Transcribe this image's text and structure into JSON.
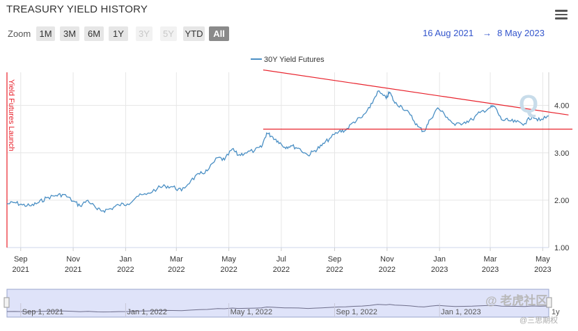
{
  "header": {
    "title": "TREASURY YIELD HISTORY",
    "menu_icon": "hamburger-menu-icon"
  },
  "zoom": {
    "label": "Zoom",
    "buttons": [
      {
        "label": "1M",
        "state": "normal"
      },
      {
        "label": "3M",
        "state": "normal"
      },
      {
        "label": "6M",
        "state": "normal"
      },
      {
        "label": "1Y",
        "state": "normal"
      },
      {
        "label": "3Y",
        "state": "disabled"
      },
      {
        "label": "5Y",
        "state": "disabled"
      },
      {
        "label": "YTD",
        "state": "normal"
      },
      {
        "label": "All",
        "state": "active"
      }
    ]
  },
  "range": {
    "from": "16 Aug 2021",
    "arrow": "→",
    "to": "8 May 2023"
  },
  "annotation": {
    "text": "Yield Futures Launch",
    "color": "#e8202a"
  },
  "watermark": {
    "text": "@ 老虎社区",
    "sub": "@三思期权"
  },
  "navigator": {
    "labels": [
      "Sep 1, 2021",
      "Jan 1, 2022",
      "May 1, 2022",
      "Sep 1, 2022",
      "Jan 1, 2023"
    ],
    "partial": "1y"
  },
  "colors": {
    "series": "#4a8fc4",
    "trend": "#e8202a",
    "nav_fill": "#dfe3f9"
  },
  "chart_data": {
    "type": "line",
    "title": "TREASURY YIELD HISTORY",
    "x_start": "2021-08-16",
    "x_end": "2023-05-08",
    "ylim": [
      1.0,
      4.7
    ],
    "yticks": [
      "1.00",
      "2.00",
      "3.00",
      "4.00"
    ],
    "xticks": [
      {
        "date": "2021-09-01",
        "m": "Sep",
        "y": "2021"
      },
      {
        "date": "2021-11-01",
        "m": "Nov",
        "y": "2021"
      },
      {
        "date": "2022-01-01",
        "m": "Jan",
        "y": "2022"
      },
      {
        "date": "2022-03-01",
        "m": "Mar",
        "y": "2022"
      },
      {
        "date": "2022-05-01",
        "m": "May",
        "y": "2022"
      },
      {
        "date": "2022-07-01",
        "m": "Jul",
        "y": "2022"
      },
      {
        "date": "2022-09-01",
        "m": "Sep",
        "y": "2022"
      },
      {
        "date": "2022-11-01",
        "m": "Nov",
        "y": "2022"
      },
      {
        "date": "2023-01-01",
        "m": "Jan",
        "y": "2023"
      },
      {
        "date": "2023-03-01",
        "m": "Mar",
        "y": "2023"
      },
      {
        "date": "2023-05-01",
        "m": "May",
        "y": "2023"
      }
    ],
    "grid": true,
    "legend": "top-center",
    "series": [
      {
        "name": "30Y Yield Futures",
        "points": [
          [
            "2021-08-16",
            1.92
          ],
          [
            "2021-08-25",
            1.95
          ],
          [
            "2021-09-03",
            1.9
          ],
          [
            "2021-09-13",
            1.88
          ],
          [
            "2021-09-22",
            1.95
          ],
          [
            "2021-10-01",
            2.05
          ],
          [
            "2021-10-12",
            2.1
          ],
          [
            "2021-10-21",
            2.12
          ],
          [
            "2021-11-01",
            1.98
          ],
          [
            "2021-11-09",
            1.88
          ],
          [
            "2021-11-18",
            2.0
          ],
          [
            "2021-11-29",
            1.8
          ],
          [
            "2021-12-06",
            1.78
          ],
          [
            "2021-12-15",
            1.82
          ],
          [
            "2021-12-24",
            1.9
          ],
          [
            "2022-01-03",
            1.92
          ],
          [
            "2022-01-14",
            2.08
          ],
          [
            "2022-01-25",
            2.12
          ],
          [
            "2022-02-07",
            2.25
          ],
          [
            "2022-02-16",
            2.3
          ],
          [
            "2022-02-25",
            2.28
          ],
          [
            "2022-03-07",
            2.2
          ],
          [
            "2022-03-18",
            2.42
          ],
          [
            "2022-03-28",
            2.55
          ],
          [
            "2022-04-06",
            2.62
          ],
          [
            "2022-04-18",
            2.9
          ],
          [
            "2022-04-26",
            2.85
          ],
          [
            "2022-05-05",
            3.08
          ],
          [
            "2022-05-12",
            2.95
          ],
          [
            "2022-05-20",
            3.0
          ],
          [
            "2022-05-31",
            3.05
          ],
          [
            "2022-06-08",
            3.12
          ],
          [
            "2022-06-14",
            3.42
          ],
          [
            "2022-06-20",
            3.35
          ],
          [
            "2022-06-27",
            3.25
          ],
          [
            "2022-07-05",
            3.12
          ],
          [
            "2022-07-12",
            3.15
          ],
          [
            "2022-07-21",
            3.1
          ],
          [
            "2022-08-01",
            2.95
          ],
          [
            "2022-08-09",
            3.05
          ],
          [
            "2022-08-17",
            3.15
          ],
          [
            "2022-08-26",
            3.3
          ],
          [
            "2022-09-06",
            3.45
          ],
          [
            "2022-09-14",
            3.48
          ],
          [
            "2022-09-23",
            3.65
          ],
          [
            "2022-10-03",
            3.75
          ],
          [
            "2022-10-12",
            3.95
          ],
          [
            "2022-10-21",
            4.3
          ],
          [
            "2022-10-31",
            4.15
          ],
          [
            "2022-11-04",
            4.28
          ],
          [
            "2022-11-10",
            4.05
          ],
          [
            "2022-11-18",
            3.98
          ],
          [
            "2022-11-28",
            3.8
          ],
          [
            "2022-12-07",
            3.55
          ],
          [
            "2022-12-14",
            3.45
          ],
          [
            "2022-12-21",
            3.7
          ],
          [
            "2022-12-30",
            3.95
          ],
          [
            "2023-01-10",
            3.75
          ],
          [
            "2023-01-19",
            3.58
          ],
          [
            "2023-01-30",
            3.65
          ],
          [
            "2023-02-08",
            3.7
          ],
          [
            "2023-02-17",
            3.85
          ],
          [
            "2023-02-28",
            3.95
          ],
          [
            "2023-03-06",
            3.98
          ],
          [
            "2023-03-14",
            3.7
          ],
          [
            "2023-03-22",
            3.68
          ],
          [
            "2023-03-31",
            3.65
          ],
          [
            "2023-04-10",
            3.62
          ],
          [
            "2023-04-19",
            3.78
          ],
          [
            "2023-04-28",
            3.68
          ],
          [
            "2023-05-08",
            3.78
          ]
        ]
      }
    ],
    "annotations": {
      "launch_date": "2021-08-16",
      "horizontal_line": {
        "value": 3.5,
        "from": "2022-06-10"
      },
      "trend_line": {
        "from": [
          "2022-06-10",
          4.75
        ],
        "to": [
          "2023-05-31",
          3.8
        ]
      }
    }
  }
}
